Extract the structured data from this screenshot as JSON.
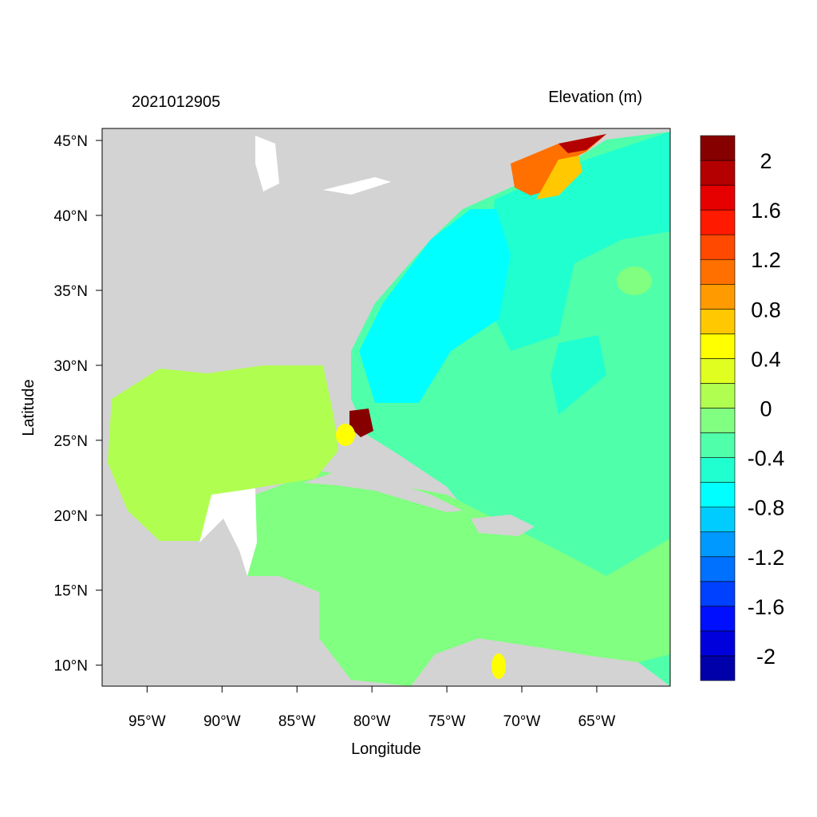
{
  "chart_data": {
    "type": "heatmap",
    "title_left": "2021012905",
    "title_right": "Elevation (m)",
    "xlabel": "Longitude",
    "ylabel": "Latitude",
    "xlim": [
      -98.0,
      -60.1
    ],
    "ylim": [
      8.6,
      45.8
    ],
    "xticks": [
      {
        "value": -95,
        "label": "95°W"
      },
      {
        "value": -90,
        "label": "90°W"
      },
      {
        "value": -85,
        "label": "85°W"
      },
      {
        "value": -80,
        "label": "80°W"
      },
      {
        "value": -75,
        "label": "75°W"
      },
      {
        "value": -70,
        "label": "70°W"
      },
      {
        "value": -65,
        "label": "65°W"
      }
    ],
    "yticks": [
      {
        "value": 45,
        "label": "45°N"
      },
      {
        "value": 40,
        "label": "40°N"
      },
      {
        "value": 35,
        "label": "35°N"
      },
      {
        "value": 30,
        "label": "30°N"
      },
      {
        "value": 25,
        "label": "25°N"
      },
      {
        "value": 20,
        "label": "20°N"
      },
      {
        "value": 15,
        "label": "15°N"
      },
      {
        "value": 10,
        "label": "10°N"
      }
    ],
    "colorbar": {
      "range": [
        -2.2,
        2.2
      ],
      "step": 0.2,
      "colors": [
        "#0000aa",
        "#0000dd",
        "#0010ff",
        "#0040ff",
        "#0070ff",
        "#0099ff",
        "#00ccff",
        "#00ffff",
        "#20ffd0",
        "#50ffaa",
        "#80ff80",
        "#b0ff50",
        "#e0ff20",
        "#ffff00",
        "#ffc800",
        "#ff9a00",
        "#ff7000",
        "#ff4800",
        "#ff1a00",
        "#e60000",
        "#b40000",
        "#870000"
      ],
      "ticks": [
        {
          "value": 2,
          "label": "2"
        },
        {
          "value": 1.6,
          "label": "1.6"
        },
        {
          "value": 1.2,
          "label": "1.2"
        },
        {
          "value": 0.8,
          "label": "0.8"
        },
        {
          "value": 0.4,
          "label": "0.4"
        },
        {
          "value": 0,
          "label": "0"
        },
        {
          "value": -0.4,
          "label": "-0.4"
        },
        {
          "value": -0.8,
          "label": "-0.8"
        },
        {
          "value": -1.2,
          "label": "-1.2"
        },
        {
          "value": -1.6,
          "label": "-1.6"
        },
        {
          "value": -2,
          "label": "-2"
        }
      ]
    },
    "land_color": "#d3d3d3",
    "grid": false
  }
}
